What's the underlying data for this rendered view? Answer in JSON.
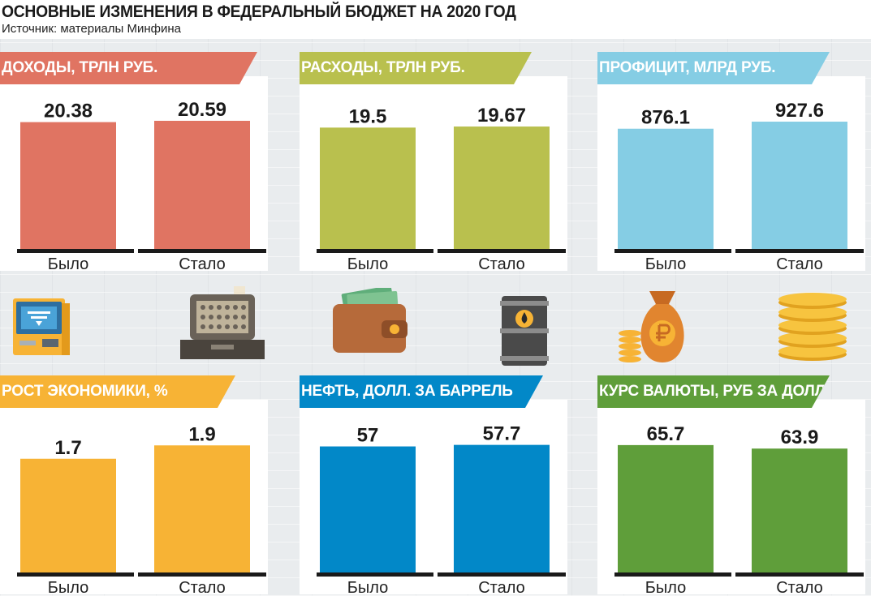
{
  "title": "ОСНОВНЫЕ ИЗМЕНЕНИЯ В ФЕДЕРАЛЬНЫЙ БЮДЖЕТ НА 2020 ГОД",
  "subtitle": "Источник: материалы Минфина",
  "colors": {
    "revenue": "#e07462",
    "expenses": "#b9c04e",
    "surplus": "#85cde4",
    "growth": "#f7b335",
    "oil": "#0288c8",
    "currency": "#5f9e3a"
  },
  "icons": [
    "atm-icon",
    "cash-register-icon",
    "wallet-icon",
    "oil-barrel-icon",
    "money-bag-icon",
    "coin-stack-icon"
  ],
  "chart_data": [
    {
      "type": "bar",
      "title": "ДОХОДЫ, ТРЛН РУБ.",
      "categories": [
        "Было",
        "Стало"
      ],
      "values": [
        20.38,
        20.59
      ],
      "labels": [
        "20.38",
        "20.59"
      ],
      "ylim": [
        0,
        21.5
      ],
      "color": "#e07462"
    },
    {
      "type": "bar",
      "title": "РАСХОДЫ, ТРЛН РУБ.",
      "categories": [
        "Было",
        "Стало"
      ],
      "values": [
        19.5,
        19.67
      ],
      "labels": [
        "19.5",
        "19.67"
      ],
      "ylim": [
        0,
        21.5
      ],
      "color": "#b9c04e"
    },
    {
      "type": "bar",
      "title": "ПРОФИЦИТ, МЛРД РУБ.",
      "categories": [
        "Было",
        "Стало"
      ],
      "values": [
        876.1,
        927.6
      ],
      "labels": [
        "876.1",
        "927.6"
      ],
      "ylim": [
        0,
        975
      ],
      "color": "#85cde4"
    },
    {
      "type": "bar",
      "title": "РОСТ ЭКОНОМИКИ, %",
      "categories": [
        "Было",
        "Стало"
      ],
      "values": [
        1.7,
        1.9
      ],
      "labels": [
        "1.7",
        "1.9"
      ],
      "ylim": [
        0,
        2.0
      ],
      "color": "#f7b335"
    },
    {
      "type": "bar",
      "title": "НЕФТЬ, ДОЛЛ. ЗА БАРРЕЛЬ",
      "categories": [
        "Было",
        "Стало"
      ],
      "values": [
        57,
        57.7
      ],
      "labels": [
        "57",
        "57.7"
      ],
      "ylim": [
        0,
        60.5
      ],
      "color": "#0288c8"
    },
    {
      "type": "bar",
      "title": "КУРС ВАЛЮТЫ, РУБ ЗА ДОЛЛ.",
      "categories": [
        "Было",
        "Стало"
      ],
      "values": [
        65.7,
        63.9
      ],
      "labels": [
        "65.7",
        "63.9"
      ],
      "ylim": [
        0,
        69
      ],
      "color": "#5f9e3a"
    }
  ]
}
